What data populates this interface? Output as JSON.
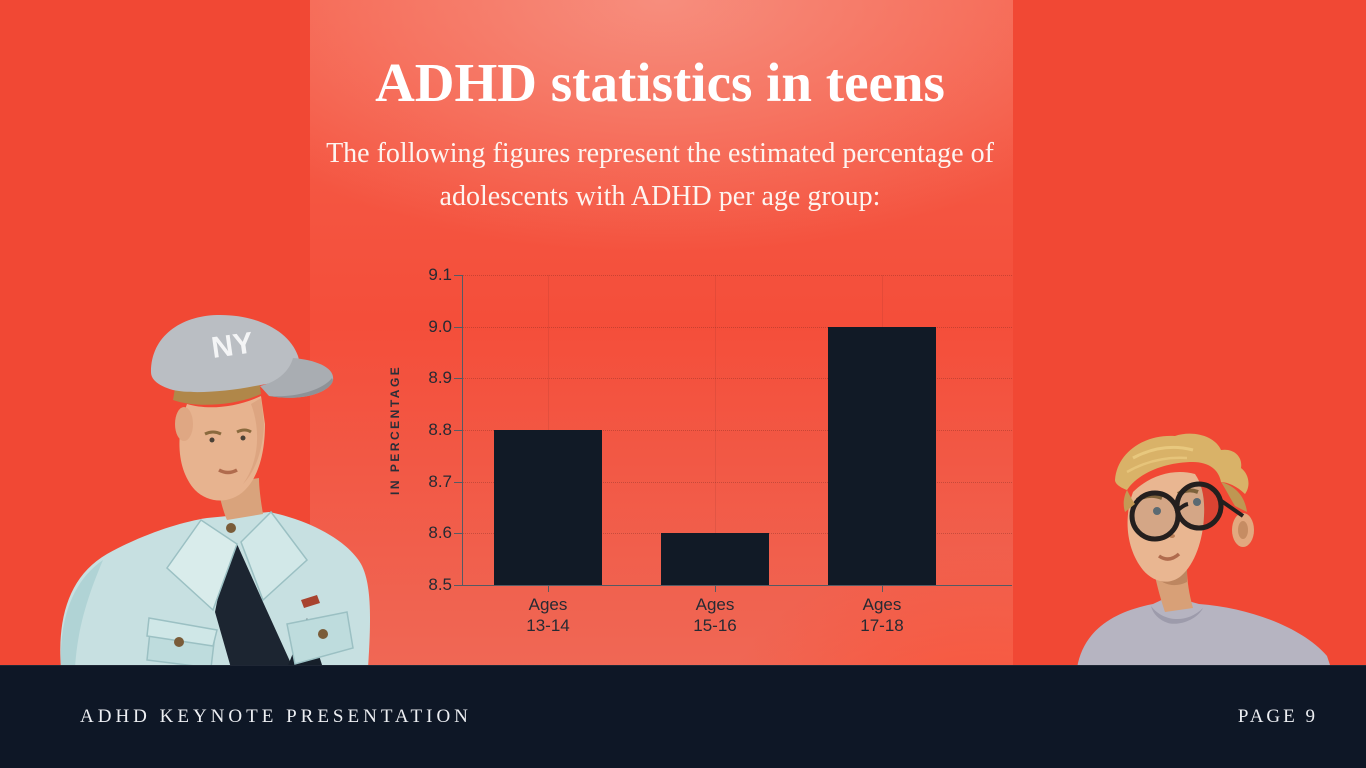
{
  "slide": {
    "title": "ADHD statistics in teens",
    "subtitle_lines": [
      "The following figures represent the estimated percentage of",
      "adolescents with ADHD per age group:"
    ]
  },
  "chart_data": {
    "type": "bar",
    "title": "",
    "categories": [
      "Ages 13-14",
      "Ages 15-16",
      "Ages 17-18"
    ],
    "values": [
      8.8,
      8.6,
      9.0
    ],
    "xlabel": "",
    "ylabel": "IN PERCENTAGE",
    "ylim": [
      8.5,
      9.1
    ],
    "yticks": [
      "8.5",
      "8.6",
      "8.7",
      "8.8",
      "8.9",
      "9.0",
      "9.1"
    ],
    "grid": true,
    "legend": false,
    "bar_color": "#111a26"
  },
  "images": {
    "left_photo": "teen-boy-in-ny-cap-and-denim-jacket",
    "right_photo": "teen-boy-with-glasses-looking-up"
  },
  "footer": {
    "left_text": "ADHD KEYNOTE PRESENTATION",
    "right_text": "PAGE 9"
  },
  "colors": {
    "background": "#f14834",
    "panel_top": "#f79080",
    "panel_mid": "#f44e3a",
    "panel_bottom": "#ee6f5d",
    "bar": "#111a26",
    "footer_bg": "#0e1726",
    "text_light": "#ffffff",
    "text_dark": "#262a33"
  }
}
